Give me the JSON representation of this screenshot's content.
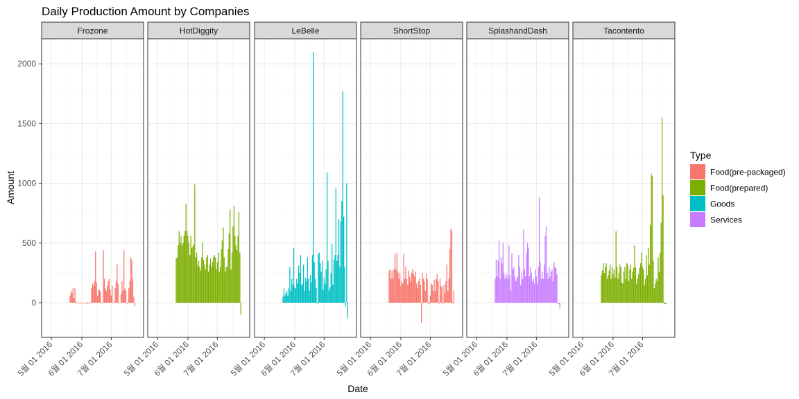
{
  "chart_data": {
    "type": "bar",
    "title": "Daily Production Amount by Companies",
    "xlabel": "Date",
    "ylabel": "Amount",
    "ylim": [
      -290,
      2210
    ],
    "yticks": [
      0,
      500,
      1000,
      1500,
      2000
    ],
    "xlim": [
      "2016-04-21",
      "2016-08-03"
    ],
    "xticks": [
      {
        "date": "2016-05-01",
        "label": "5월 01 2016"
      },
      {
        "date": "2016-06-01",
        "label": "6월 01 2016"
      },
      {
        "date": "2016-07-01",
        "label": "7월 01 2016"
      }
    ],
    "grid": true,
    "facets": [
      "Frozone",
      "HotDiggity",
      "LeBelle",
      "ShortStop",
      "SplashandDash",
      "Tacontento"
    ],
    "legend": {
      "title": "Type",
      "position": "right",
      "entries": [
        {
          "name": "Food(pre-packaged)",
          "color": "#F8766D"
        },
        {
          "name": "Food(prepared)",
          "color": "#7CAE00"
        },
        {
          "name": "Goods",
          "color": "#00BFC4"
        },
        {
          "name": "Services",
          "color": "#C77CFF"
        }
      ]
    },
    "series": [
      {
        "facet": "Frozone",
        "type": "Food(pre-packaged)",
        "start": "2016-05-20",
        "values": [
          60,
          100,
          80,
          120,
          40,
          120,
          10,
          -5,
          -5,
          -5,
          -5,
          -5,
          -5,
          -5,
          -5,
          -5,
          -5,
          -5,
          -10,
          -5,
          -5,
          -5,
          120,
          160,
          140,
          180,
          430,
          170,
          60,
          100,
          110,
          90,
          -5,
          -5,
          440,
          200,
          120,
          100,
          140,
          180,
          200,
          110,
          60,
          140,
          -5,
          10,
          120,
          180,
          320,
          160,
          -5,
          -5,
          70,
          180,
          100,
          440,
          120,
          100,
          -5,
          -10,
          120,
          180,
          380,
          360,
          200,
          50,
          -30
        ]
      },
      {
        "facet": "HotDiggity",
        "type": "Food(prepared)",
        "start": "2016-05-20",
        "values": [
          370,
          380,
          480,
          600,
          500,
          560,
          480,
          500,
          560,
          600,
          830,
          600,
          560,
          500,
          400,
          560,
          460,
          470,
          490,
          990,
          380,
          420,
          310,
          350,
          300,
          270,
          380,
          500,
          360,
          320,
          280,
          380,
          400,
          260,
          320,
          370,
          300,
          340,
          380,
          400,
          380,
          280,
          340,
          420,
          260,
          300,
          450,
          520,
          630,
          380,
          260,
          300,
          300,
          450,
          580,
          780,
          280,
          420,
          640,
          810,
          560,
          480,
          440,
          560,
          760,
          420,
          -100
        ]
      },
      {
        "facet": "LeBelle",
        "type": "Goods",
        "start": "2016-05-20",
        "values": [
          50,
          120,
          60,
          80,
          100,
          60,
          120,
          300,
          100,
          200,
          150,
          460,
          130,
          120,
          200,
          160,
          310,
          250,
          400,
          150,
          160,
          320,
          100,
          210,
          180,
          380,
          200,
          100,
          230,
          170,
          400,
          2100,
          340,
          200,
          120,
          -10,
          410,
          420,
          330,
          260,
          350,
          110,
          210,
          160,
          280,
          1090,
          350,
          100,
          130,
          250,
          490,
          150,
          360,
          400,
          960,
          350,
          400,
          700,
          300,
          680,
          850,
          1770,
          720,
          300,
          -30,
          1000,
          -130
        ]
      },
      {
        "facet": "ShortStop",
        "type": "Food(pre-packaged)",
        "start": "2016-05-20",
        "values": [
          270,
          280,
          200,
          270,
          200,
          280,
          410,
          280,
          420,
          260,
          200,
          250,
          140,
          180,
          160,
          410,
          200,
          300,
          200,
          150,
          270,
          220,
          180,
          250,
          280,
          240,
          220,
          260,
          160,
          120,
          180,
          200,
          150,
          -170,
          250,
          200,
          180,
          100,
          240,
          200,
          -10,
          -10,
          60,
          160,
          150,
          100,
          190,
          100,
          200,
          240,
          180,
          -10,
          200,
          140,
          130,
          -10,
          150,
          80,
          180,
          320,
          100,
          200,
          450,
          620,
          600,
          -10,
          100
        ]
      },
      {
        "facet": "SplashandDash",
        "type": "Services",
        "start": "2016-05-20",
        "values": [
          200,
          360,
          220,
          350,
          520,
          200,
          380,
          330,
          500,
          250,
          200,
          220,
          240,
          200,
          480,
          230,
          100,
          410,
          280,
          300,
          220,
          180,
          200,
          220,
          400,
          300,
          150,
          250,
          200,
          610,
          280,
          220,
          420,
          500,
          460,
          220,
          300,
          250,
          180,
          200,
          160,
          280,
          220,
          160,
          300,
          880,
          340,
          200,
          260,
          200,
          320,
          560,
          640,
          250,
          200,
          300,
          220,
          260,
          280,
          180,
          340,
          300,
          290,
          240,
          -10,
          -10,
          -50
        ]
      },
      {
        "facet": "Tacontento",
        "type": "Food(prepared)",
        "start": "2016-05-20",
        "values": [
          230,
          270,
          330,
          250,
          300,
          330,
          200,
          230,
          270,
          320,
          200,
          300,
          240,
          280,
          210,
          600,
          300,
          200,
          250,
          320,
          300,
          170,
          160,
          260,
          300,
          200,
          330,
          320,
          180,
          280,
          320,
          200,
          260,
          290,
          480,
          300,
          160,
          200,
          240,
          290,
          330,
          420,
          300,
          280,
          150,
          200,
          400,
          230,
          460,
          320,
          650,
          1080,
          1060,
          350,
          120,
          160,
          200,
          180,
          380,
          260,
          420,
          670,
          1550,
          900,
          -10,
          -10,
          -10
        ]
      }
    ]
  }
}
